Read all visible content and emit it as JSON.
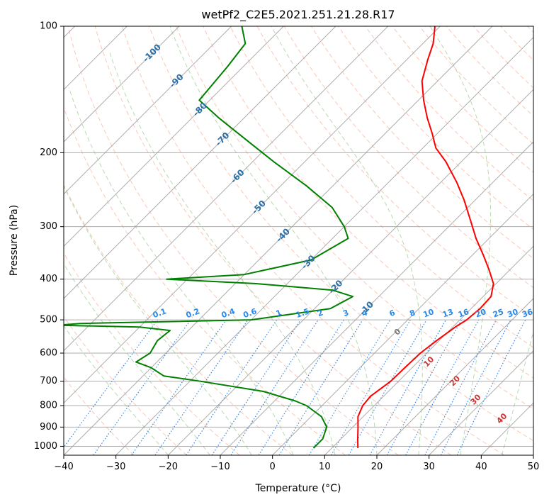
{
  "chart_data": {
    "type": "line",
    "title": "wetPf2_C2E5.2021.251.21.28.R17",
    "xlabel": "Temperature (°C)",
    "ylabel": "Pressure (hPa)",
    "xlim": [
      -40,
      50
    ],
    "ylim": [
      1050,
      100
    ],
    "y_scale": "log",
    "skew": "skew-T",
    "grid": true,
    "x_ticks": [
      "−40",
      "−30",
      "−20",
      "−10",
      "0",
      "10",
      "20",
      "30",
      "40",
      "50"
    ],
    "y_ticks": [
      "100",
      "200",
      "300",
      "400",
      "500",
      "600",
      "700",
      "800",
      "900",
      "1000"
    ],
    "colors": {
      "temperature": "#ff0000",
      "dewpoint": "#008000",
      "isotherm": "#999999",
      "dry_adiabat": "#f7a286",
      "moist_adiabat": "#9acb8f",
      "mixing_ratio": "#3a86e0",
      "mixing_label": "#2b8ae8",
      "isotherm_label": "#2a6fa8",
      "wetbulb_label": "#cc3333"
    },
    "series": [
      {
        "key": "temperature",
        "p": [
          1010,
          960,
          900,
          850,
          800,
          760,
          700,
          650,
          600,
          560,
          520,
          500,
          470,
          440,
          410,
          380,
          350,
          320,
          290,
          260,
          235,
          210,
          195,
          180,
          165,
          150,
          135,
          120,
          110,
          100
        ],
        "t": [
          15.0,
          13.2,
          11.0,
          9.0,
          7.8,
          7.5,
          8.5,
          8.6,
          8.8,
          9.5,
          10.5,
          11.3,
          11.7,
          11.5,
          9.5,
          6.0,
          2.0,
          -2.5,
          -7.0,
          -12.0,
          -17.0,
          -23.0,
          -27.5,
          -31.0,
          -35.0,
          -39.0,
          -43.0,
          -46.0,
          -48.0,
          -51.0
        ]
      },
      {
        "key": "dewpoint",
        "p": [
          1010,
          960,
          900,
          850,
          800,
          780,
          740,
          700,
          680,
          650,
          630,
          600,
          560,
          530,
          520,
          515,
          510,
          500,
          470,
          440,
          425,
          410,
          400,
          390,
          360,
          320,
          300,
          270,
          240,
          210,
          185,
          165,
          150,
          125,
          110,
          100
        ],
        "t": [
          6.5,
          6.5,
          5.0,
          2.0,
          -3.0,
          -6.0,
          -14.0,
          -28.0,
          -36.0,
          -40.0,
          -44.0,
          -43.0,
          -44.0,
          -43.5,
          -50.0,
          -66.0,
          -62.0,
          -30.0,
          -17.0,
          -15.0,
          -20.0,
          -36.0,
          -54.0,
          -40.0,
          -30.0,
          -27.0,
          -30.0,
          -36.0,
          -45.0,
          -56.0,
          -66.0,
          -75.0,
          -82.0,
          -83.0,
          -84.0,
          -88.0
        ]
      }
    ],
    "isotherm_labels": [
      "-100",
      "-90",
      "-80",
      "-70",
      "-60",
      "-50",
      "-40",
      "-30",
      "-20",
      "-10"
    ],
    "mixing_ratio_labels": [
      "0.1",
      "0.2",
      "0.4",
      "0.6",
      "1",
      "1.5",
      "2",
      "3",
      "4",
      "6",
      "8",
      "10",
      "13",
      "16",
      "20",
      "25",
      "30",
      "36"
    ],
    "wetbulb_labels": [
      "0",
      "10",
      "20",
      "30",
      "40"
    ]
  }
}
